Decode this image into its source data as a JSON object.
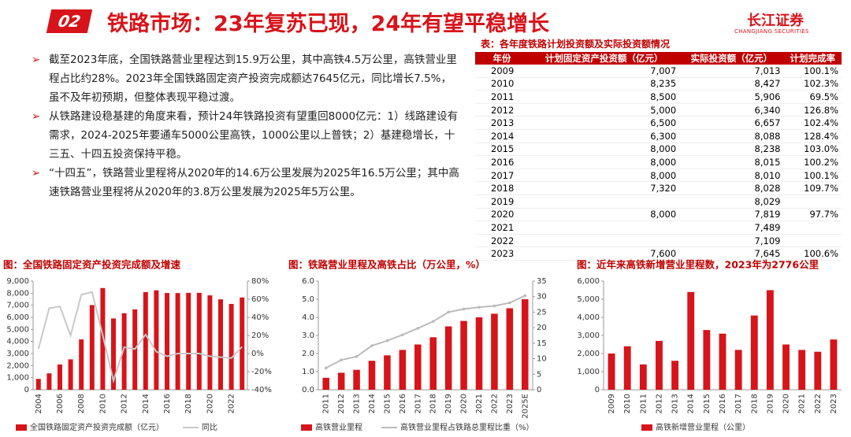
{
  "header": {
    "badge": "02",
    "title": "铁路市场：23年复苏已现，24年有望平稳增长",
    "logo": "长江证券",
    "logo_en": "CHANGJIANG SECURITIES"
  },
  "bullets": [
    "截至2023年底，全国铁路营业里程达到15.9万公里，其中高铁4.5万公里，高铁营业里程占比约28%。2023年全国铁路固定资产投资完成额达7645亿元，同比增长7.5%，虽不及年初预期，但整体表现平稳过渡。",
    "从铁路建设稳基建的角度来看，预计24年铁路投资有望重回8000亿元：1）线路建设有需求，2024-2025年要通车5000公里高铁，1000公里以上普铁；2）基建稳增长，十三五、十四五投资保持平稳。",
    "“十四五”，铁路营业里程将从2020年的14.6万公里发展为2025年16.5万公里；其中高速铁路营业里程将从2020年的3.8万公里发展为2025年5万公里。"
  ],
  "table": {
    "title": "表：各年度铁路计划投资额及实际投资额情况",
    "columns": [
      "年份",
      "计划固定资产投资额（亿元）",
      "实际投资额（亿元）",
      "计划完成率"
    ],
    "rows": [
      [
        "2009",
        "7,007",
        "7,013",
        "100.1%"
      ],
      [
        "2010",
        "8,235",
        "8,427",
        "102.3%"
      ],
      [
        "2011",
        "8,500",
        "5,906",
        "69.5%"
      ],
      [
        "2012",
        "5,000",
        "6,340",
        "126.8%"
      ],
      [
        "2013",
        "6,500",
        "6,657",
        "102.4%"
      ],
      [
        "2014",
        "6,300",
        "8,088",
        "128.4%"
      ],
      [
        "2015",
        "8,000",
        "8,238",
        "103.0%"
      ],
      [
        "2016",
        "8,000",
        "8,015",
        "100.2%"
      ],
      [
        "2017",
        "8,000",
        "8,010",
        "100.1%"
      ],
      [
        "2018",
        "7,320",
        "8,028",
        "109.7%"
      ],
      [
        "2019",
        null,
        "8,029",
        null
      ],
      [
        "2020",
        "8,000",
        "7,819",
        "97.7%"
      ],
      [
        "2021",
        null,
        "7,489",
        null
      ],
      [
        "2022",
        null,
        "7,109",
        null
      ],
      [
        "2023",
        "7,600",
        "7,645",
        "100.6%"
      ]
    ]
  },
  "chart_data": [
    {
      "type": "combo",
      "title": "图：全国铁路固定资产投资完成额及增速",
      "categories": [
        "2004",
        null,
        "2006",
        null,
        "2008",
        null,
        "2010",
        null,
        "2012",
        null,
        "2014",
        null,
        "2016",
        null,
        "2018",
        null,
        "2020",
        null,
        "2022",
        null
      ],
      "series": [
        {
          "name": "全国铁路固定资产投资完成额（亿元）",
          "type": "bar",
          "color": "#d7141a",
          "values": [
            900,
            1360,
            2090,
            2520,
            4170,
            7013,
            8427,
            5906,
            6340,
            6657,
            8088,
            8238,
            8015,
            8010,
            8028,
            8029,
            7819,
            7489,
            7109,
            7645
          ]
        },
        {
          "name": "同比",
          "type": "line",
          "axis": "y2",
          "color": "#c8c8c8",
          "values": [
            5,
            50,
            52,
            20,
            65,
            68,
            20,
            -30,
            7,
            5,
            21,
            2,
            -3,
            0,
            0,
            0,
            -3,
            -4,
            -5,
            7.5
          ]
        }
      ],
      "ylim": [
        0,
        9000
      ],
      "yticks": [
        0,
        {
          "value": 1000,
          "label": "1,000"
        },
        {
          "value": 2000,
          "label": "2,000"
        },
        {
          "value": 3000,
          "label": "3,000"
        },
        {
          "value": 4000,
          "label": "4,000"
        },
        {
          "value": 5000,
          "label": "5,000"
        },
        {
          "value": 6000,
          "label": "6,000"
        },
        {
          "value": 7000,
          "label": "7,000"
        },
        {
          "value": 8000,
          "label": "8,000"
        },
        {
          "value": 9000,
          "label": "9,000"
        }
      ],
      "y2lim": [
        -40,
        80
      ],
      "y2ticks": [
        {
          "value": -40,
          "label": "-40%"
        },
        {
          "value": -20,
          "label": "-20%"
        },
        {
          "value": 0,
          "label": "0%"
        },
        {
          "value": 20,
          "label": "20%"
        },
        {
          "value": 40,
          "label": "40%"
        },
        {
          "value": 60,
          "label": "60%"
        },
        {
          "value": 80,
          "label": "80%"
        }
      ]
    },
    {
      "type": "combo",
      "title": "图：铁路营业里程及高铁占比（万公里，%）",
      "categories": [
        "2011",
        "2012",
        "2013",
        "2014",
        "2015",
        "2016",
        "2017",
        "2018",
        "2019",
        "2020",
        "2021",
        "2022",
        "2023",
        "2025E"
      ],
      "series": [
        {
          "name": "高铁营业里程",
          "type": "bar",
          "color": "#d7141a",
          "values": [
            0.66,
            0.94,
            1.1,
            1.6,
            1.9,
            2.2,
            2.5,
            2.9,
            3.5,
            3.8,
            4.0,
            4.2,
            4.5,
            5.0
          ]
        },
        {
          "name": "高铁营业里程占铁路总里程比重（%）",
          "type": "line",
          "axis": "y2",
          "color": "#bbbbbb",
          "markers": true,
          "values": [
            7,
            9.6,
            10.7,
            14.2,
            15.8,
            17.7,
            19.8,
            22,
            25,
            26,
            26.6,
            27,
            28,
            30.3
          ]
        }
      ],
      "ylim": [
        0,
        6
      ],
      "yticks": [
        {
          "value": 0,
          "label": "0.0"
        },
        {
          "value": 1,
          "label": "1.0"
        },
        {
          "value": 2,
          "label": "2.0"
        },
        {
          "value": 3,
          "label": "3.0"
        },
        {
          "value": 4,
          "label": "4.0"
        },
        {
          "value": 5,
          "label": "5.0"
        },
        {
          "value": 6,
          "label": "6.0"
        }
      ],
      "y2lim": [
        0,
        35
      ],
      "y2ticks": [
        0,
        5,
        10,
        15,
        20,
        25,
        30,
        35
      ]
    },
    {
      "type": "bar",
      "title": "图：近年来高铁新增营业里程数，2023年为2776公里",
      "categories": [
        "2009",
        "2010",
        "2011",
        "2012",
        "2013",
        "2014",
        "2015",
        "2016",
        "2017",
        "2018",
        "2019",
        "2020",
        "2021",
        "2022",
        "2023"
      ],
      "series": [
        {
          "name": "高铁新增营业里程（公里）",
          "type": "bar",
          "color": "#d7141a",
          "values": [
            2000,
            2400,
            1400,
            2700,
            1600,
            5400,
            3300,
            3100,
            2200,
            4100,
            5500,
            2500,
            2200,
            2100,
            2776
          ]
        }
      ],
      "ylim": [
        0,
        6000
      ],
      "yticks": [
        0,
        {
          "value": 1000,
          "label": "1,000"
        },
        {
          "value": 2000,
          "label": "2,000"
        },
        {
          "value": 3000,
          "label": "3,000"
        },
        {
          "value": 4000,
          "label": "4,000"
        },
        {
          "value": 5000,
          "label": "5,000"
        },
        {
          "value": 6000,
          "label": "6,000"
        }
      ]
    }
  ]
}
